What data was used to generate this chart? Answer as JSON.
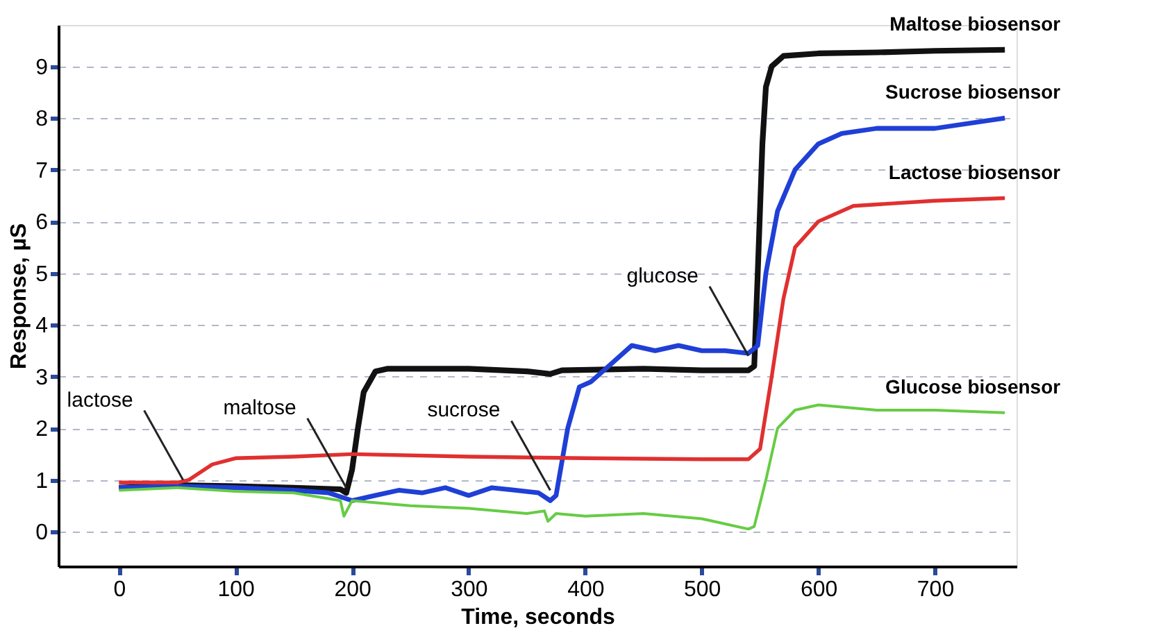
{
  "chart_data": {
    "type": "line",
    "xlabel": "Time, seconds",
    "ylabel": "Response, µS",
    "xlim": [
      -52,
      770
    ],
    "ylim": [
      -0.67,
      9.8
    ],
    "xticks": [
      0,
      100,
      200,
      300,
      400,
      500,
      600,
      700
    ],
    "yticks": [
      0,
      1,
      2,
      3,
      4,
      5,
      6,
      7,
      8,
      9
    ],
    "grid": "y",
    "legend": false,
    "marker": "none",
    "line_style": "solid",
    "series": [
      {
        "name": "Maltose biosensor",
        "color": "#111111",
        "x": [
          0,
          50,
          100,
          150,
          190,
          195,
          200,
          205,
          210,
          220,
          230,
          300,
          350,
          370,
          380,
          450,
          500,
          540,
          545,
          548,
          552,
          555,
          560,
          570,
          600,
          650,
          700,
          760
        ],
        "values": [
          0.85,
          0.9,
          0.88,
          0.85,
          0.82,
          0.75,
          1.2,
          2.0,
          2.7,
          3.1,
          3.15,
          3.15,
          3.1,
          3.05,
          3.12,
          3.15,
          3.12,
          3.12,
          3.2,
          5.0,
          7.5,
          8.6,
          9.0,
          9.2,
          9.25,
          9.27,
          9.3,
          9.32
        ]
      },
      {
        "name": "Sucrose biosensor",
        "color": "#1f3fd6",
        "x": [
          0,
          50,
          100,
          150,
          180,
          200,
          220,
          240,
          260,
          280,
          300,
          320,
          340,
          360,
          370,
          375,
          385,
          395,
          405,
          420,
          440,
          460,
          480,
          500,
          520,
          540,
          548,
          555,
          565,
          580,
          600,
          620,
          650,
          700,
          760
        ],
        "values": [
          0.85,
          0.88,
          0.85,
          0.8,
          0.75,
          0.6,
          0.7,
          0.8,
          0.75,
          0.85,
          0.7,
          0.85,
          0.8,
          0.75,
          0.6,
          0.7,
          2.0,
          2.8,
          2.9,
          3.2,
          3.6,
          3.5,
          3.6,
          3.5,
          3.5,
          3.45,
          3.6,
          5.0,
          6.2,
          7.0,
          7.5,
          7.7,
          7.8,
          7.8,
          8.0
        ]
      },
      {
        "name": "Lactose biosensor",
        "color": "#e03030",
        "x": [
          0,
          50,
          60,
          80,
          100,
          150,
          200,
          300,
          400,
          500,
          540,
          550,
          560,
          570,
          580,
          600,
          630,
          700,
          760
        ],
        "values": [
          0.95,
          0.95,
          1.0,
          1.3,
          1.42,
          1.45,
          1.5,
          1.45,
          1.42,
          1.4,
          1.4,
          1.6,
          3.0,
          4.5,
          5.5,
          6.0,
          6.3,
          6.4,
          6.45
        ]
      },
      {
        "name": "Glucose  biosensor",
        "color": "#66cc44",
        "x": [
          0,
          50,
          100,
          150,
          190,
          193,
          200,
          250,
          300,
          350,
          365,
          368,
          375,
          400,
          450,
          500,
          540,
          545,
          555,
          565,
          580,
          600,
          650,
          700,
          760
        ],
        "values": [
          0.8,
          0.85,
          0.78,
          0.75,
          0.6,
          0.3,
          0.6,
          0.5,
          0.45,
          0.35,
          0.4,
          0.2,
          0.35,
          0.3,
          0.35,
          0.25,
          0.05,
          0.1,
          1.0,
          2.0,
          2.35,
          2.45,
          2.35,
          2.35,
          2.3
        ]
      }
    ],
    "annotations": [
      {
        "text": "lactose",
        "x": 55,
        "y": 1.0
      },
      {
        "text": "maltose",
        "x": 195,
        "y": 0.85
      },
      {
        "text": "sucrose",
        "x": 370,
        "y": 0.8
      },
      {
        "text": "glucose",
        "x": 540,
        "y": 3.4
      }
    ]
  }
}
